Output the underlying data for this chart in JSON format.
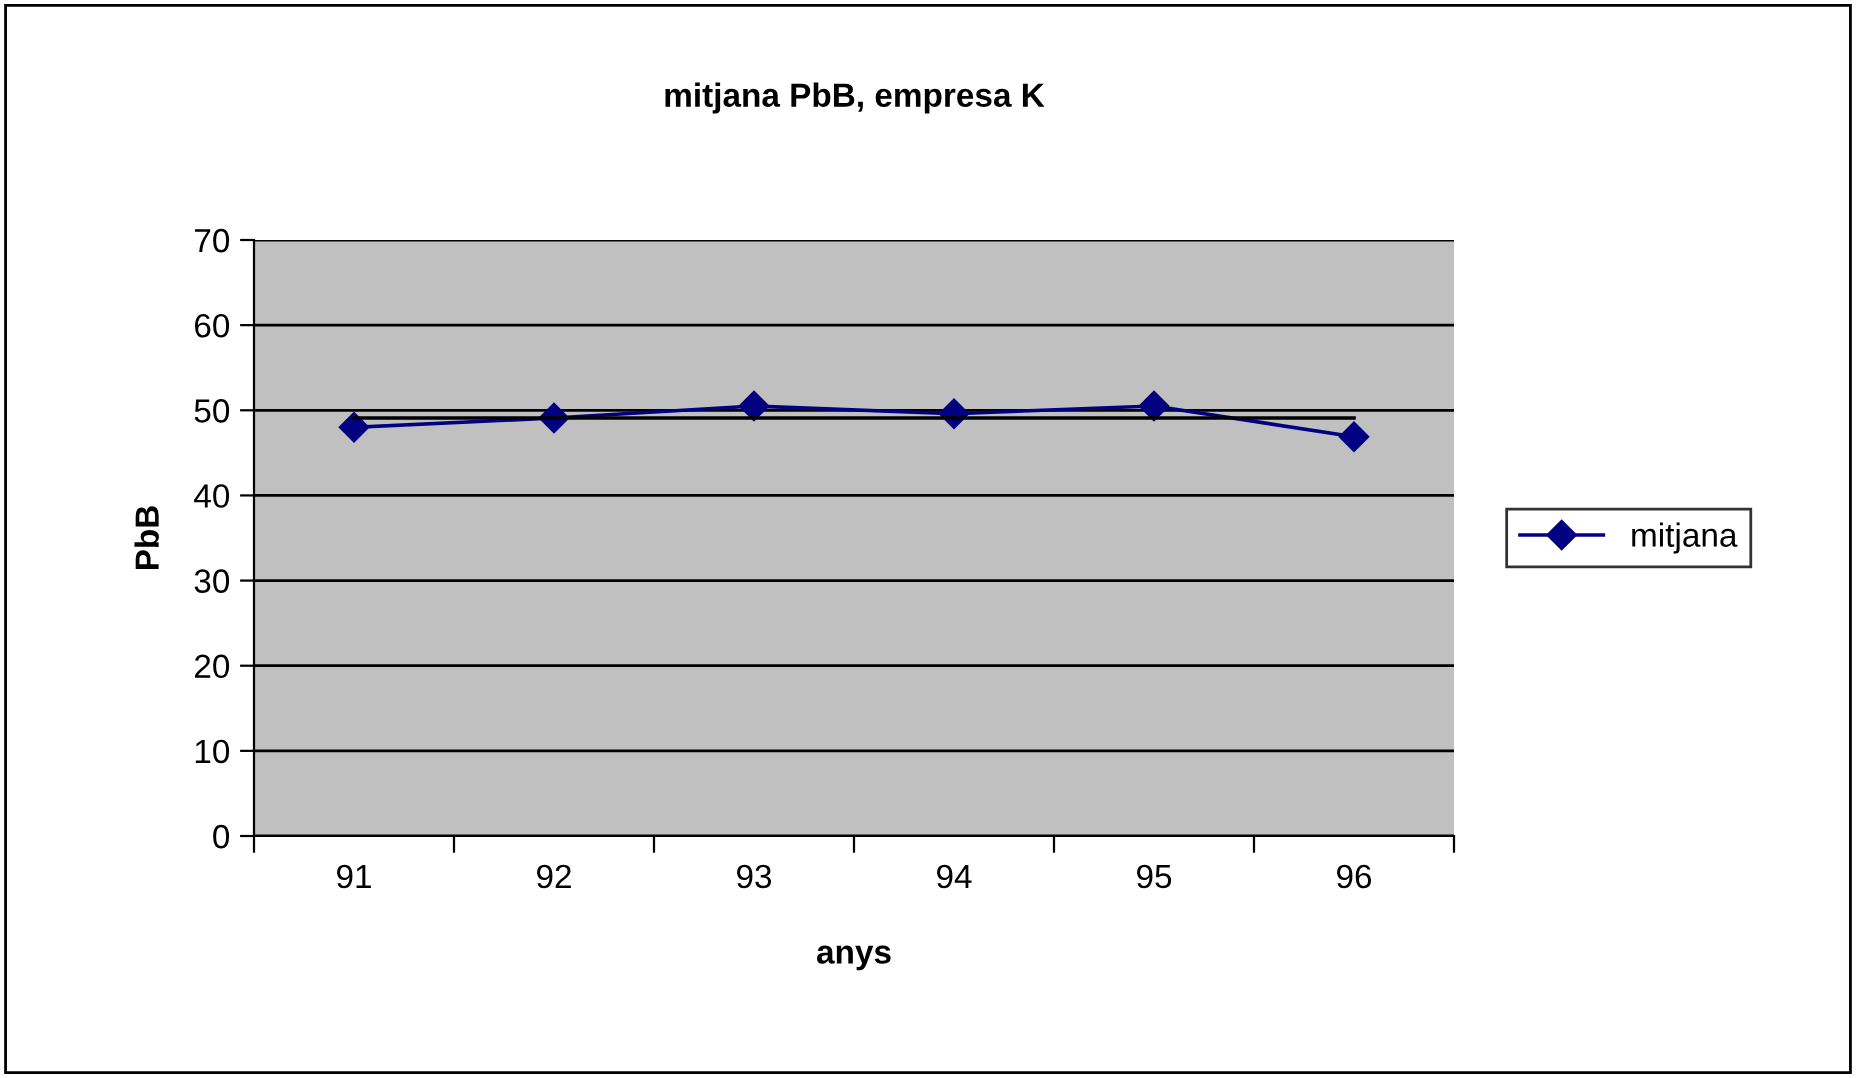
{
  "chart_data": {
    "type": "line",
    "title": "mitjana PbB, empresa K",
    "xlabel": "anys",
    "ylabel": "PbB",
    "categories": [
      "91",
      "92",
      "93",
      "94",
      "95",
      "96"
    ],
    "series": [
      {
        "name": "mitjana",
        "color": "#000080",
        "values": [
          48.0,
          49.1,
          50.5,
          49.6,
          50.5,
          46.9
        ],
        "marker": "diamond"
      },
      {
        "color": "#000000",
        "values": [
          49.1,
          49.1,
          49.1,
          49.1,
          49.1,
          49.1
        ],
        "marker": "none"
      }
    ],
    "ylim": [
      0,
      70
    ],
    "yticks": [
      0,
      10,
      20,
      30,
      40,
      50,
      60,
      70
    ],
    "grid": "y",
    "legend": "right"
  }
}
